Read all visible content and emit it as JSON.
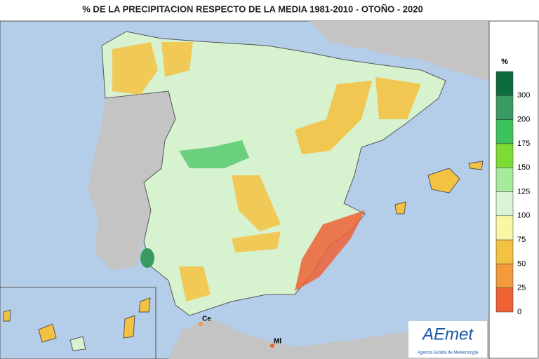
{
  "header": {
    "title": "% DE LA PRECIPITACION RESPECTO DE LA MEDIA 1981-2010 - OTOÑO - 2020"
  },
  "map": {
    "labels": [
      "Ce",
      "Ml"
    ]
  },
  "legend": {
    "unit": "%",
    "ticks": [
      "300",
      "200",
      "175",
      "150",
      "125",
      "100",
      "75",
      "50",
      "25",
      "0"
    ],
    "colors": [
      "#0e6b3a",
      "#3a9a62",
      "#3dc35c",
      "#7ddc34",
      "#a6ea9c",
      "#d8f4d4",
      "#fbf6a6",
      "#f4c242",
      "#f39a3a",
      "#ee6236"
    ]
  },
  "logo": {
    "name": "AEmet",
    "subtitle": "Agencia Estatal de Meteorología"
  }
}
